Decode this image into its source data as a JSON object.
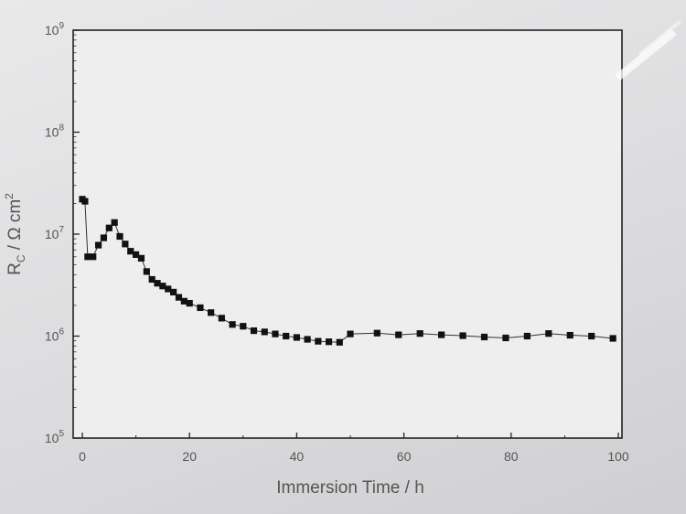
{
  "chart_data": {
    "type": "scatter",
    "x_label": "Immersion Time / h",
    "y_label": {
      "symbol": "R",
      "subscript": "C",
      "unit": " / Ω cm",
      "superscript": "2"
    },
    "x_range": [
      0,
      100
    ],
    "y_range": [
      100000,
      1000000000
    ],
    "y_scale": "log",
    "grid": false,
    "legend": "none",
    "x_ticks": [
      0,
      20,
      40,
      60,
      80,
      100
    ],
    "y_ticks": [
      {
        "base": "10",
        "exp": "5",
        "value": 100000
      },
      {
        "base": "10",
        "exp": "6",
        "value": 1000000
      },
      {
        "base": "10",
        "exp": "7",
        "value": 10000000
      },
      {
        "base": "10",
        "exp": "8",
        "value": 100000000
      },
      {
        "base": "10",
        "exp": "9",
        "value": 1000000000
      }
    ],
    "marker_color": "#111111",
    "line_color": "#333333",
    "series": [
      {
        "x": [
          0,
          0.5,
          1,
          2,
          3,
          4,
          5,
          6,
          7,
          8,
          9,
          10,
          11,
          12,
          13,
          14,
          15,
          16,
          17,
          18,
          19,
          20,
          22,
          24,
          26,
          28,
          30,
          32,
          34,
          36,
          38,
          40,
          42,
          44,
          46,
          48,
          50,
          55,
          59,
          63,
          67,
          71,
          75,
          79,
          83,
          87,
          91,
          95,
          99
        ],
        "y": [
          22000000,
          21000000,
          6000000,
          6000000,
          7800000,
          9200000,
          11500000,
          13000000,
          9500000,
          8000000,
          6800000,
          6300000,
          5800000,
          4300000,
          3600000,
          3300000,
          3100000,
          2900000,
          2700000,
          2400000,
          2200000,
          2100000,
          1900000,
          1700000,
          1500000,
          1300000,
          1250000,
          1130000,
          1100000,
          1050000,
          1000000,
          970000,
          930000,
          890000,
          880000,
          870000,
          1050000,
          1070000,
          1030000,
          1060000,
          1030000,
          1010000,
          980000,
          960000,
          1000000,
          1060000,
          1020000,
          1000000,
          950000
        ]
      }
    ]
  }
}
